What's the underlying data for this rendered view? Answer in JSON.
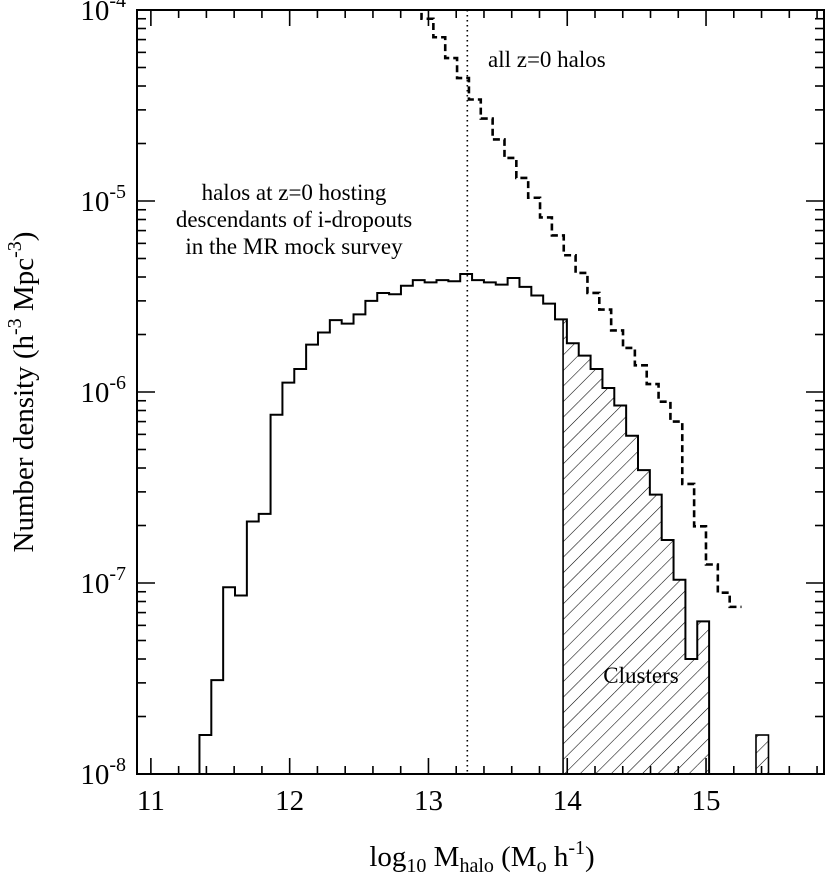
{
  "chart_data": {
    "type": "histogram",
    "xlabel": "log10 Mhalo (Mo h-1)",
    "ylabel": "Number density (h-3 Mpc-3)",
    "xlim": [
      10.9,
      15.85
    ],
    "ylim": [
      1e-08,
      0.0001
    ],
    "yscale": "log",
    "x_ticks": [
      "11",
      "12",
      "13",
      "14",
      "15"
    ],
    "y_ticks": [
      {
        "base": "10",
        "exp": "-8",
        "value": 1e-08
      },
      {
        "base": "10",
        "exp": "-7",
        "value": 1e-07
      },
      {
        "base": "10",
        "exp": "-6",
        "value": 1e-06
      },
      {
        "base": "10",
        "exp": "-5",
        "value": 1e-05
      },
      {
        "base": "10",
        "exp": "-4",
        "value": 0.0001
      }
    ],
    "bin_edges_start": 11.35,
    "bin_width": 0.0854,
    "series": [
      {
        "style": "solid",
        "values": [
          1.6e-08,
          3.1e-08,
          9.5e-08,
          8.6e-08,
          2.1e-07,
          2.3e-07,
          7.6e-07,
          1.12e-06,
          1.32e-06,
          1.77e-06,
          2.05e-06,
          2.38e-06,
          2.28e-06,
          2.55e-06,
          3e-06,
          3.3e-06,
          3.25e-06,
          3.6e-06,
          3.85e-06,
          3.75e-06,
          3.85e-06,
          3.8e-06,
          4.15e-06,
          3.85e-06,
          3.75e-06,
          3.65e-06,
          3.95e-06,
          3.55e-06,
          3.2e-06,
          2.9e-06,
          2.4e-06,
          1.8e-06,
          1.55e-06,
          1.32e-06,
          1.05e-06,
          8.5e-07,
          5.9e-07,
          3.9e-07,
          2.9e-07,
          1.68e-07,
          1.04e-07,
          4e-08,
          6.3e-08
        ]
      },
      {
        "style": "dashed",
        "label": "all z=0 halos",
        "x_start": 12.95,
        "values": [
          9e-05,
          7.2e-05,
          5.6e-05,
          4.4e-05,
          3.4e-05,
          2.7e-05,
          2.1e-05,
          1.68e-05,
          1.32e-05,
          1.04e-05,
          8.2e-06,
          6.6e-06,
          5.2e-06,
          4.2e-06,
          3.3e-06,
          2.7e-06,
          2.1e-06,
          1.7e-06,
          1.38e-06,
          1.1e-06,
          8.9e-07,
          7e-07,
          3.3e-07,
          1.98e-07,
          1.25e-07,
          8.9e-08,
          7.5e-08
        ]
      }
    ],
    "vline": 13.28,
    "annotations": {
      "dropouts_line1": "halos at z=0 hosting",
      "dropouts_line2": "descendants of i-dropouts",
      "dropouts_line3": "in the MR mock survey",
      "all_halos": "all z=0 halos",
      "clusters": "Clusters"
    },
    "clusters_region": {
      "x_start": 13.97,
      "x_end": 15.16,
      "extra_bin": {
        "x_start": 15.36,
        "x_end": 15.45,
        "value": 1.6e-08
      }
    }
  }
}
